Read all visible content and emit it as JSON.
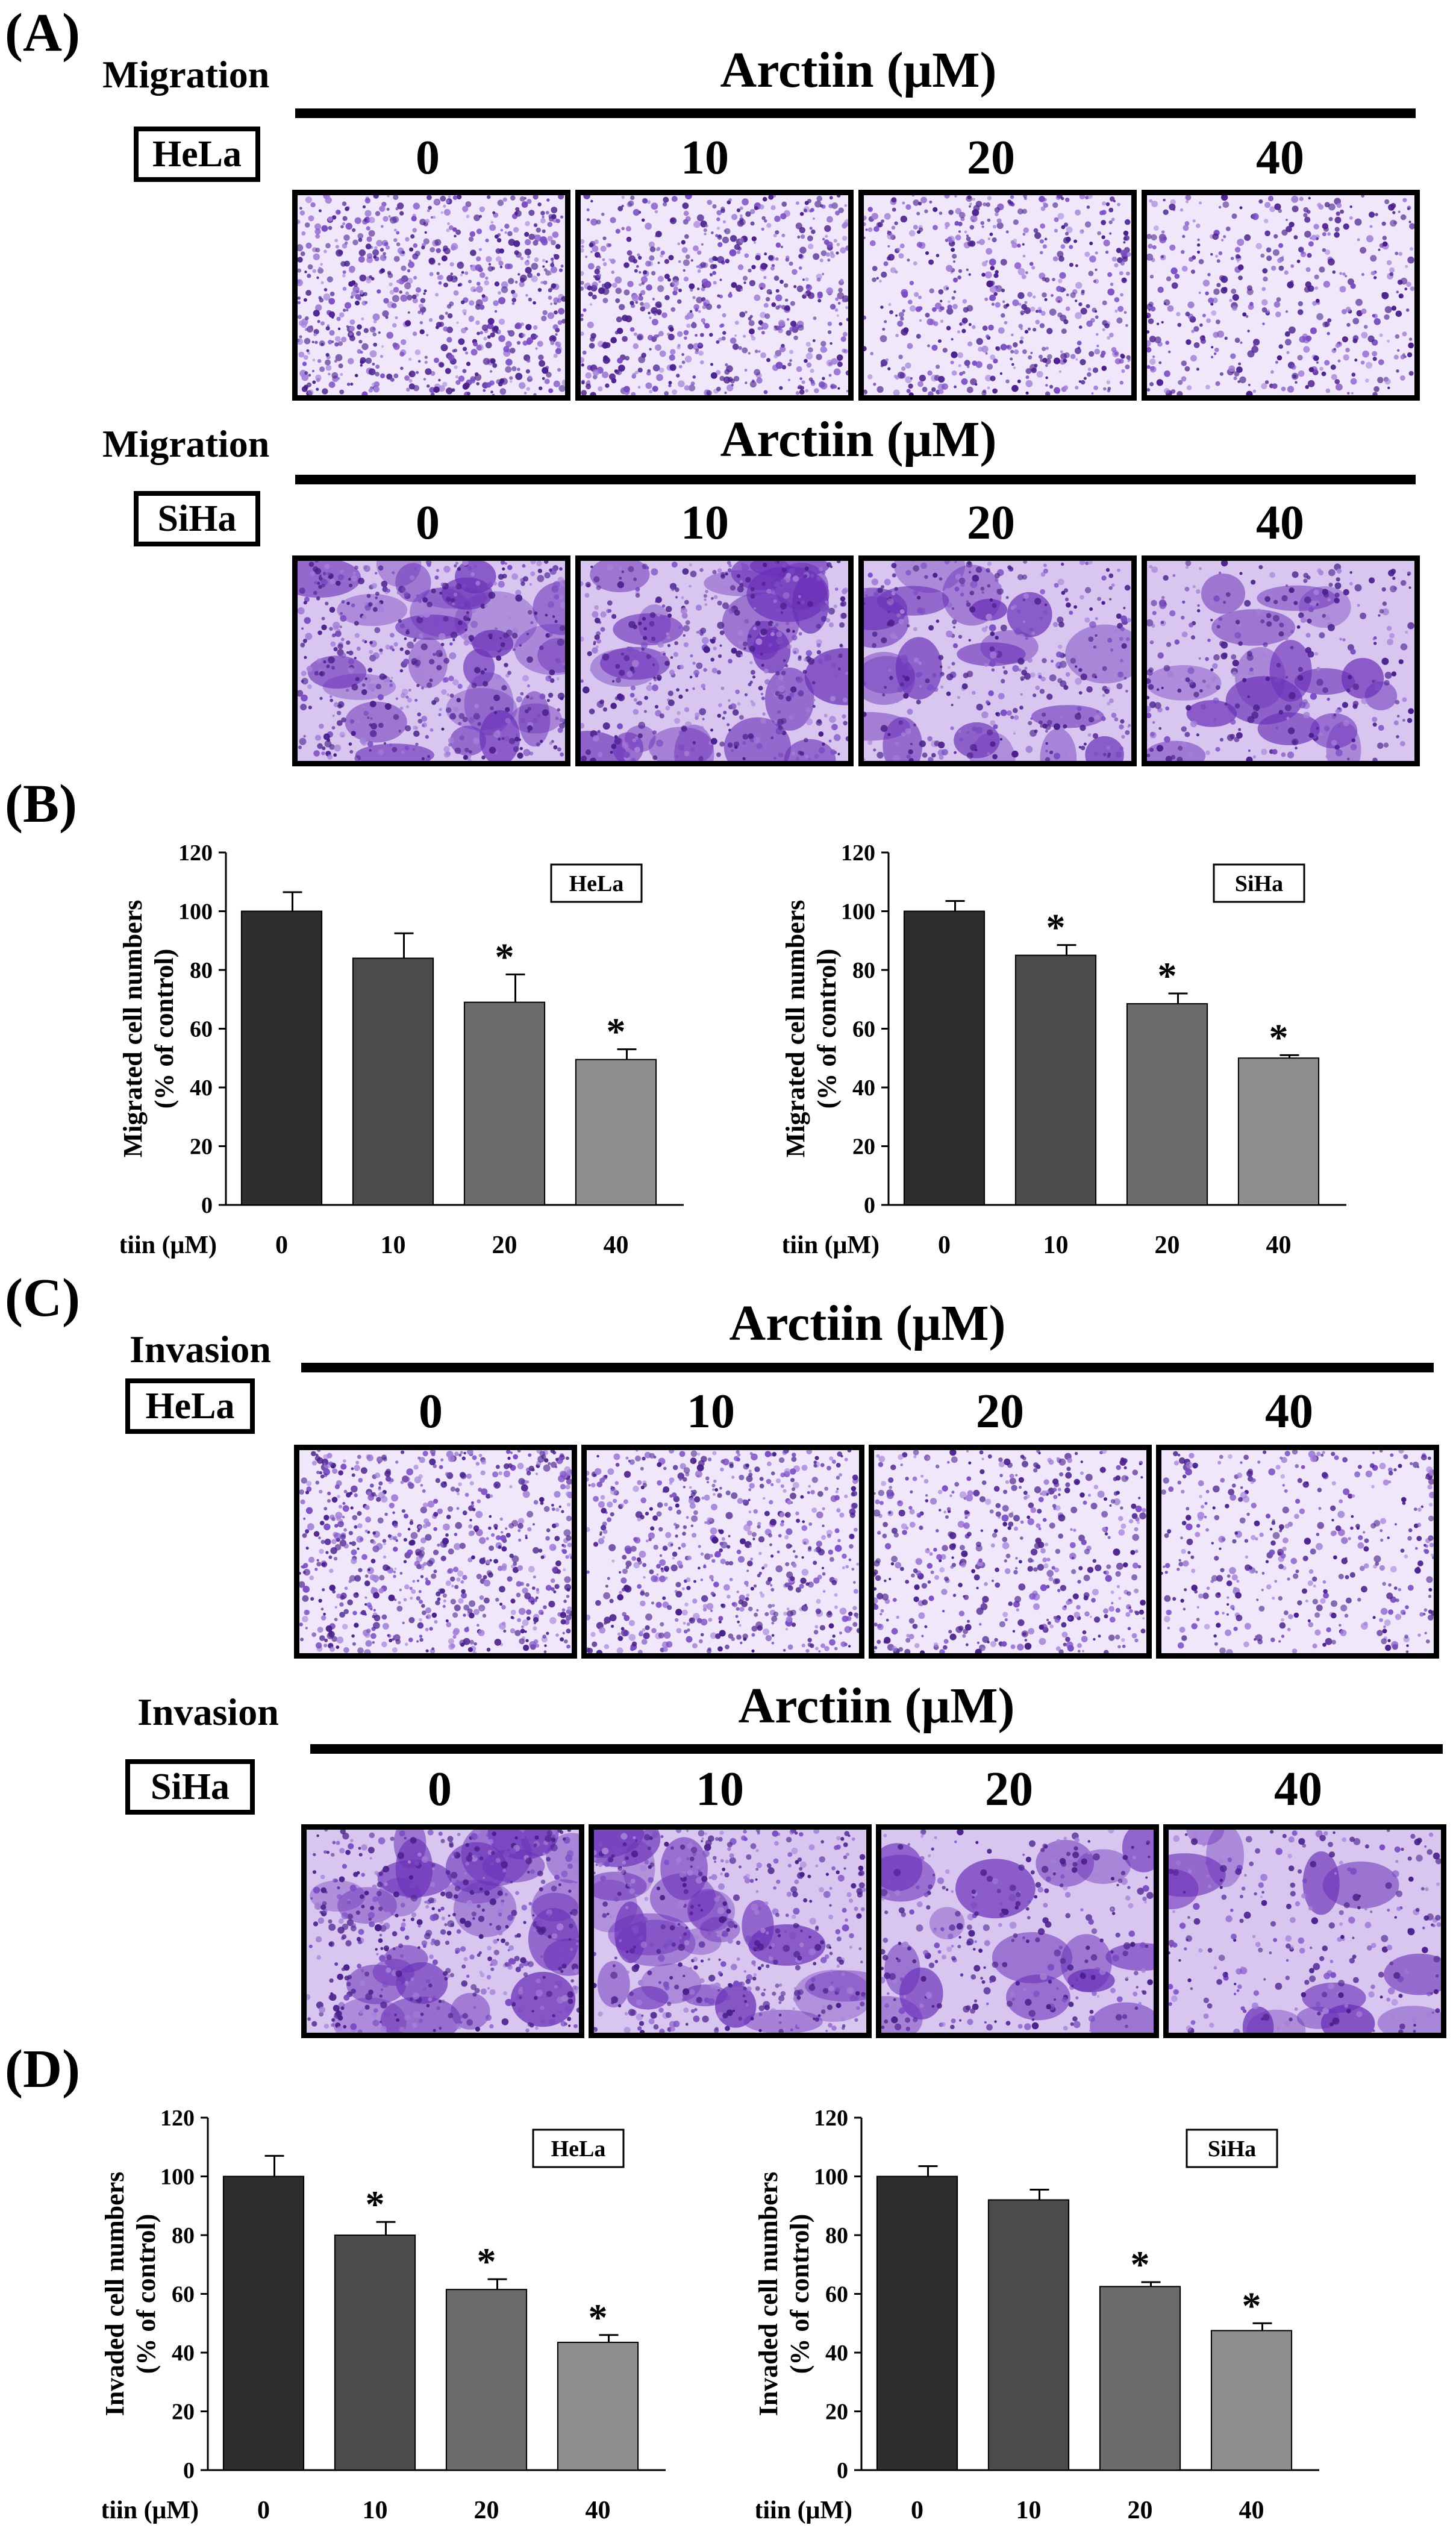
{
  "panel_labels": {
    "A": "(A)",
    "B": "(B)",
    "C": "(C)",
    "D": "(D)"
  },
  "image_blocks": [
    {
      "assay": "Migration",
      "cell_line": "HeLa",
      "title": "Arctiin (μM)",
      "doses": [
        "0",
        "10",
        "20",
        "40"
      ],
      "stain": "light"
    },
    {
      "assay": "Migration",
      "cell_line": "SiHa",
      "title": "Arctiin (μM)",
      "doses": [
        "0",
        "10",
        "20",
        "40"
      ],
      "stain": "dense"
    },
    {
      "assay": "Invasion",
      "cell_line": "HeLa",
      "title": "Arctiin (μM)",
      "doses": [
        "0",
        "10",
        "20",
        "40"
      ],
      "stain": "light"
    },
    {
      "assay": "Invasion",
      "cell_line": "SiHa",
      "title": "Arctiin (μM)",
      "doses": [
        "0",
        "10",
        "20",
        "40"
      ],
      "stain": "dense"
    }
  ],
  "colors": {
    "bar0": "#2e2e2e",
    "bar1": "#4b4b4b",
    "bar2": "#6b6b6b",
    "bar3": "#8e8e8e",
    "stain": "#5a2d9c"
  },
  "chart_data": [
    {
      "type": "bar",
      "panel": "B",
      "legend_box": "HeLa",
      "ylabel": [
        "Migrated cell numbers",
        "(% of control)"
      ],
      "xlabel": "Arctiin (μM)",
      "categories": [
        "0",
        "10",
        "20",
        "40"
      ],
      "values": [
        100,
        84,
        69,
        49.5
      ],
      "errors": [
        6.5,
        8.5,
        9.5,
        3.5
      ],
      "significant": [
        "",
        "",
        "*",
        "*"
      ],
      "ylim": [
        0,
        120
      ],
      "yticks": [
        "0",
        "20",
        "40",
        "60",
        "80",
        "100",
        "120"
      ]
    },
    {
      "type": "bar",
      "panel": "B",
      "legend_box": "SiHa",
      "ylabel": [
        "Migrated cell numbers",
        "(% of control)"
      ],
      "xlabel": "Arctiin (μM)",
      "categories": [
        "0",
        "10",
        "20",
        "40"
      ],
      "values": [
        100,
        85,
        68.5,
        50
      ],
      "errors": [
        3.5,
        3.5,
        3.5,
        1
      ],
      "significant": [
        "",
        "*",
        "*",
        "*"
      ],
      "ylim": [
        0,
        120
      ],
      "yticks": [
        "0",
        "20",
        "40",
        "60",
        "80",
        "100",
        "120"
      ]
    },
    {
      "type": "bar",
      "panel": "D",
      "legend_box": "HeLa",
      "ylabel": [
        "Invaded cell numbers",
        "(% of control)"
      ],
      "xlabel": "Arctiin (μM)",
      "categories": [
        "0",
        "10",
        "20",
        "40"
      ],
      "values": [
        100,
        80,
        61.5,
        43.5
      ],
      "errors": [
        7,
        4.5,
        3.5,
        2.5
      ],
      "significant": [
        "",
        "*",
        "*",
        "*"
      ],
      "ylim": [
        0,
        120
      ],
      "yticks": [
        "0",
        "20",
        "40",
        "60",
        "80",
        "100",
        "120"
      ]
    },
    {
      "type": "bar",
      "panel": "D",
      "legend_box": "SiHa",
      "ylabel": [
        "Invaded cell numbers",
        "(% of control)"
      ],
      "xlabel": "Arctiin (μM)",
      "categories": [
        "0",
        "10",
        "20",
        "40"
      ],
      "values": [
        100,
        92,
        62.5,
        47.5
      ],
      "errors": [
        3.5,
        3.5,
        1.5,
        2.5
      ],
      "significant": [
        "",
        "",
        "*",
        "*"
      ],
      "ylim": [
        0,
        120
      ],
      "yticks": [
        "0",
        "20",
        "40",
        "60",
        "80",
        "100",
        "120"
      ]
    }
  ]
}
